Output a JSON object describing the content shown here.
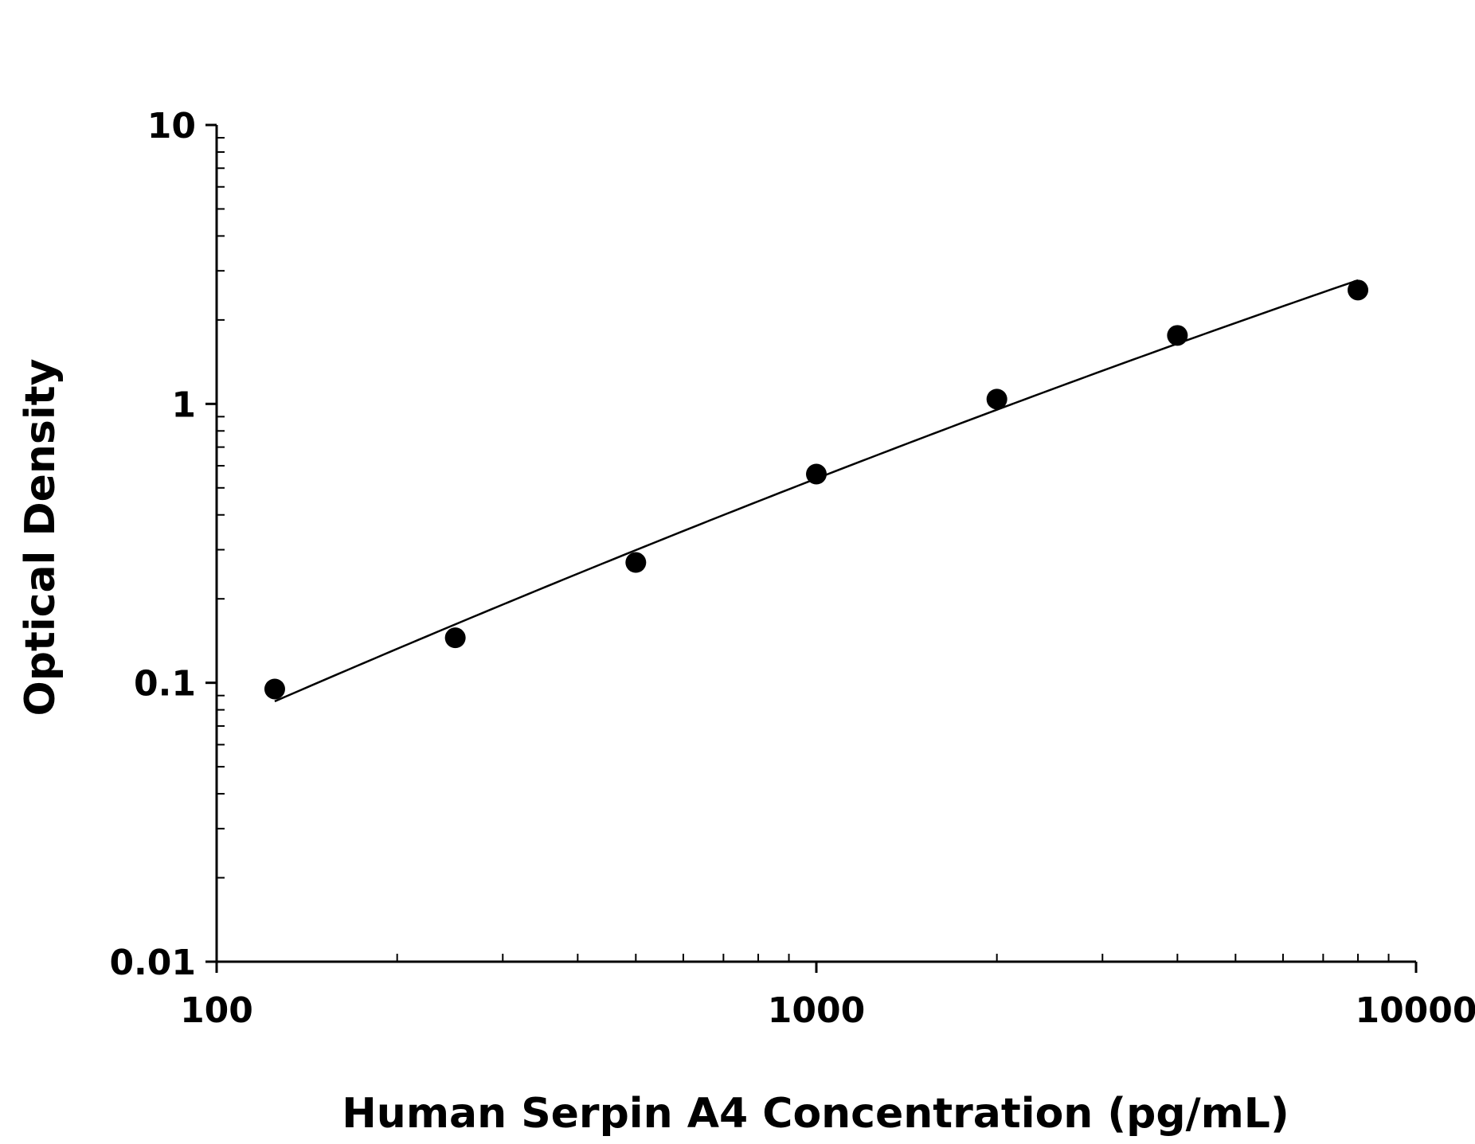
{
  "chart_data": {
    "type": "scatter",
    "title": "",
    "xlabel": "Human Serpin A4 Concentration (pg/mL)",
    "ylabel": "Optical Density",
    "x_scale": "log",
    "y_scale": "log",
    "xlim": [
      100,
      10000
    ],
    "ylim": [
      0.01,
      10
    ],
    "x_ticks": [
      100,
      1000,
      10000
    ],
    "x_tick_labels": [
      "100",
      "1000",
      "10000"
    ],
    "y_ticks": [
      0.01,
      0.1,
      1,
      10
    ],
    "y_tick_labels": [
      "0.01",
      "0.1",
      "1",
      "10"
    ],
    "grid": false,
    "legend": "none",
    "series": [
      {
        "x": [
          125,
          250,
          500,
          1000,
          2000,
          4000,
          8000
        ],
        "y": [
          0.095,
          0.145,
          0.27,
          0.56,
          1.04,
          1.76,
          2.56
        ]
      }
    ],
    "fit_curve": true,
    "colors": {
      "marker": "#000000",
      "line": "#000000",
      "axis": "#000000"
    }
  }
}
